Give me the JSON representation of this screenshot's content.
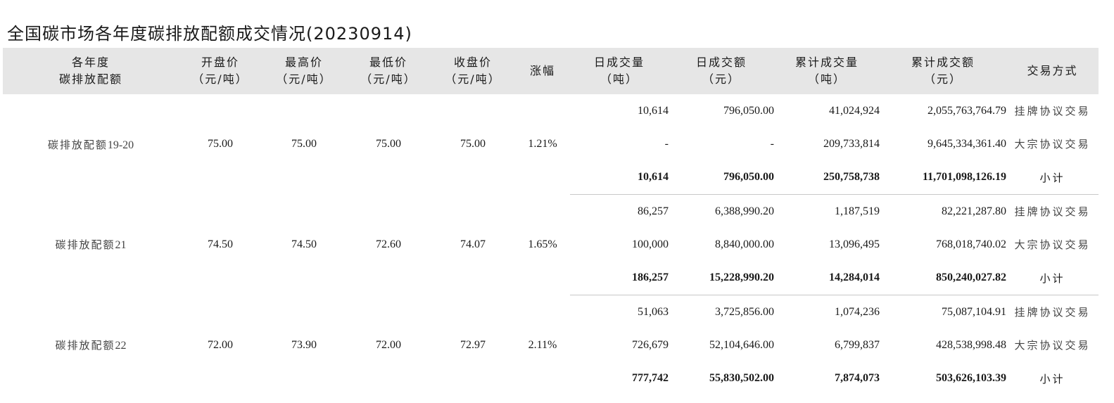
{
  "title": "全国碳市场各年度碳排放配额成交情况(20230914)",
  "headers": [
    {
      "l1": "各年度",
      "l2": "碳排放配额"
    },
    {
      "l1": "开盘价",
      "l2": "（元/吨）"
    },
    {
      "l1": "最高价",
      "l2": "（元/吨）"
    },
    {
      "l1": "最低价",
      "l2": "（元/吨）"
    },
    {
      "l1": "收盘价",
      "l2": "（元/吨）"
    },
    {
      "l1": "涨幅",
      "l2": ""
    },
    {
      "l1": "日成交量",
      "l2": "（吨）"
    },
    {
      "l1": "日成交额",
      "l2": "（元）"
    },
    {
      "l1": "累计成交量",
      "l2": "（吨）"
    },
    {
      "l1": "累计成交额",
      "l2": "（元）"
    },
    {
      "l1": "交易方式",
      "l2": ""
    }
  ],
  "groups": [
    {
      "name_prefix": "碳排放配额",
      "name_year": "19-20",
      "open": "75.00",
      "high": "75.00",
      "low": "75.00",
      "close": "75.00",
      "change": "1.21%",
      "rows": [
        {
          "daily_volume": "10,614",
          "daily_amount": "796,050.00",
          "cum_volume": "41,024,924",
          "cum_amount": "2,055,763,764.79",
          "method": "挂牌协议交易"
        },
        {
          "daily_volume": "-",
          "daily_amount": "-",
          "cum_volume": "209,733,814",
          "cum_amount": "9,645,334,361.40",
          "method": "大宗协议交易"
        },
        {
          "daily_volume": "10,614",
          "daily_amount": "796,050.00",
          "cum_volume": "250,758,738",
          "cum_amount": "11,701,098,126.19",
          "method": "小计"
        }
      ]
    },
    {
      "name_prefix": "碳排放配额",
      "name_year": "21",
      "open": "74.50",
      "high": "74.50",
      "low": "72.60",
      "close": "74.07",
      "change": "1.65%",
      "rows": [
        {
          "daily_volume": "86,257",
          "daily_amount": "6,388,990.20",
          "cum_volume": "1,187,519",
          "cum_amount": "82,221,287.80",
          "method": "挂牌协议交易"
        },
        {
          "daily_volume": "100,000",
          "daily_amount": "8,840,000.00",
          "cum_volume": "13,096,495",
          "cum_amount": "768,018,740.02",
          "method": "大宗协议交易"
        },
        {
          "daily_volume": "186,257",
          "daily_amount": "15,228,990.20",
          "cum_volume": "14,284,014",
          "cum_amount": "850,240,027.82",
          "method": "小计"
        }
      ]
    },
    {
      "name_prefix": "碳排放配额",
      "name_year": "22",
      "open": "72.00",
      "high": "73.90",
      "low": "72.00",
      "close": "72.97",
      "change": "2.11%",
      "rows": [
        {
          "daily_volume": "51,063",
          "daily_amount": "3,725,856.00",
          "cum_volume": "1,074,236",
          "cum_amount": "75,087,104.91",
          "method": "挂牌协议交易"
        },
        {
          "daily_volume": "726,679",
          "daily_amount": "52,104,646.00",
          "cum_volume": "6,799,837",
          "cum_amount": "428,538,998.48",
          "method": "大宗协议交易"
        },
        {
          "daily_volume": "777,742",
          "daily_amount": "55,830,502.00",
          "cum_volume": "7,874,073",
          "cum_amount": "503,626,103.39",
          "method": "小计"
        }
      ]
    }
  ]
}
